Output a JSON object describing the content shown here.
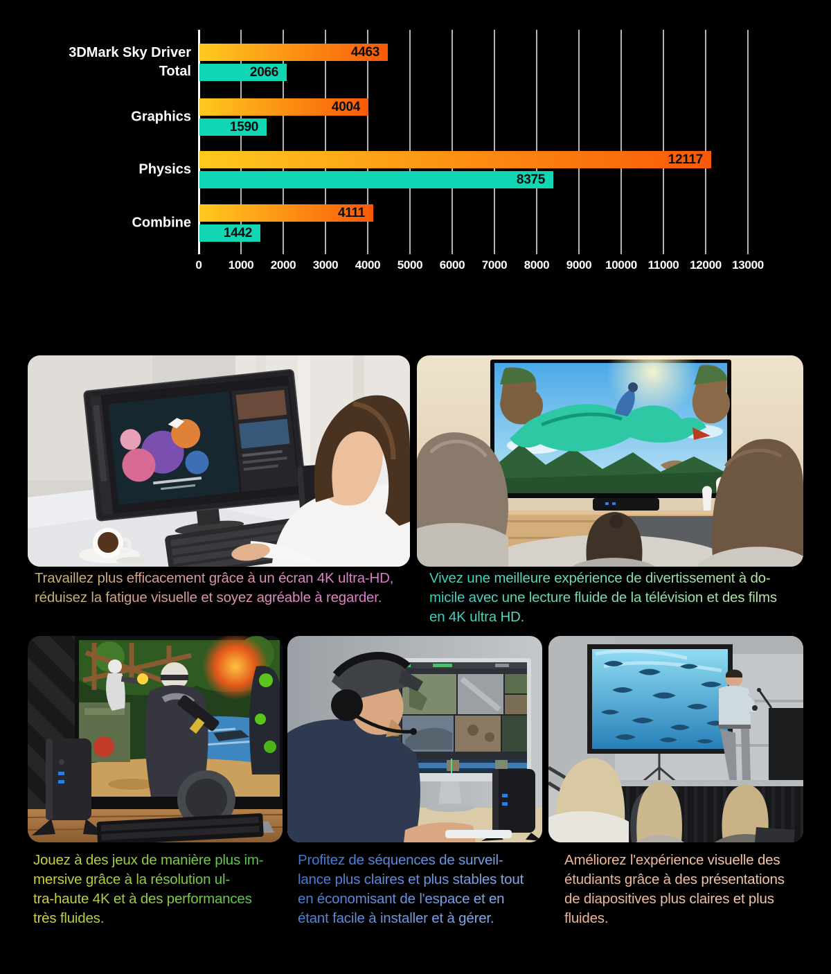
{
  "page": {
    "background": "#000000"
  },
  "chart_data": {
    "type": "bar",
    "orientation": "horizontal",
    "title": "",
    "categories": [
      "3DMark Sky Driver\nTotal",
      "Graphics",
      "Physics",
      "Combine"
    ],
    "series": [
      {
        "name": "orange",
        "values": [
          4463,
          4004,
          12117,
          4111
        ],
        "color_start": "#ffc91f",
        "color_end": "#f95908"
      },
      {
        "name": "teal",
        "values": [
          2066,
          1590,
          8375,
          1442
        ],
        "color": "#10d6b3"
      }
    ],
    "xlim": [
      0,
      13000
    ],
    "x_ticks": [
      "0",
      "1000",
      "2000",
      "3000",
      "4000",
      "5000",
      "6000",
      "7000",
      "8000",
      "9000",
      "10000",
      "11000",
      "12000",
      "13000"
    ],
    "grid": true,
    "legend": "none",
    "value_label_color": "#0b0b0b",
    "axis_color": "#ffffff",
    "gridline_color": "#b5b5b5"
  },
  "features": {
    "work": {
      "caption": "Travaillez plus efficacement grâce à un écran 4K ultra-HD,\nréduisez la fatigue visuelle et soyez agréable à regarder.",
      "text_gradient": [
        "#c9b468",
        "#df6fd4"
      ]
    },
    "tv": {
      "caption": "Vivez une meilleure expérience de divertissement à do-\nmicile avec une lecture fluide de la télévision et des films\nen 4K ultra HD.",
      "text_gradient": [
        "#35d2c1",
        "#cdeba6"
      ]
    },
    "gaming": {
      "caption": "Jouez à des jeux de manière plus im-\nmersive grâce à la résolution ul-\ntra-haute 4K et à des performances\ntrès fluides.",
      "text_gradient": [
        "#d8d43a",
        "#3dc84e"
      ]
    },
    "surveillance": {
      "caption": "Profitez de séquences de surveil-\nlance plus claires et plus stables tout\nen économisant de l'espace et en\nétant facile à installer et à gérer.",
      "text_gradient": [
        "#3a74d6",
        "#9dbdf2"
      ]
    },
    "presentation": {
      "caption": "Améliorez l'expérience visuelle des\nétudiants grâce à des présentations\nde diapositives plus claires et plus\nfluides.",
      "text_gradient": [
        "#eeb694",
        "#f6cdb2"
      ]
    }
  }
}
